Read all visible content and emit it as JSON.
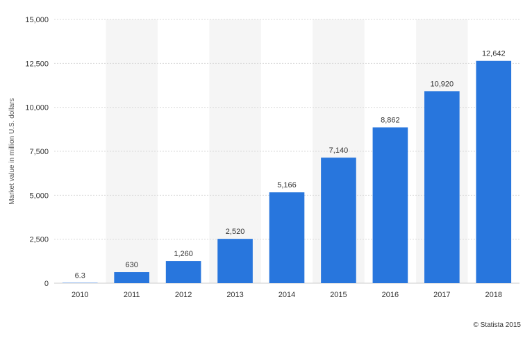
{
  "chart_data": {
    "type": "bar",
    "categories": [
      "2010",
      "2011",
      "2012",
      "2013",
      "2014",
      "2015",
      "2016",
      "2017",
      "2018"
    ],
    "values": [
      6.3,
      630,
      1260,
      2520,
      5166,
      7140,
      8862,
      10920,
      12642
    ],
    "value_labels": [
      "6.3",
      "630",
      "1,260",
      "2,520",
      "5,166",
      "7,140",
      "8,862",
      "10,920",
      "12,642"
    ],
    "ylabel": "Market value in million U.S. dollars",
    "ylim": [
      0,
      15000
    ],
    "yticks": [
      0,
      2500,
      5000,
      7500,
      10000,
      12500,
      15000
    ],
    "ytick_labels": [
      "0",
      "2,500",
      "5,000",
      "7,500",
      "10,000",
      "12,500",
      "15,000"
    ],
    "grid": true,
    "bar_color": "#2876dd",
    "band_color": "#f5f5f5",
    "grid_color": "#d9d9d9"
  },
  "credit": "© Statista 2015"
}
